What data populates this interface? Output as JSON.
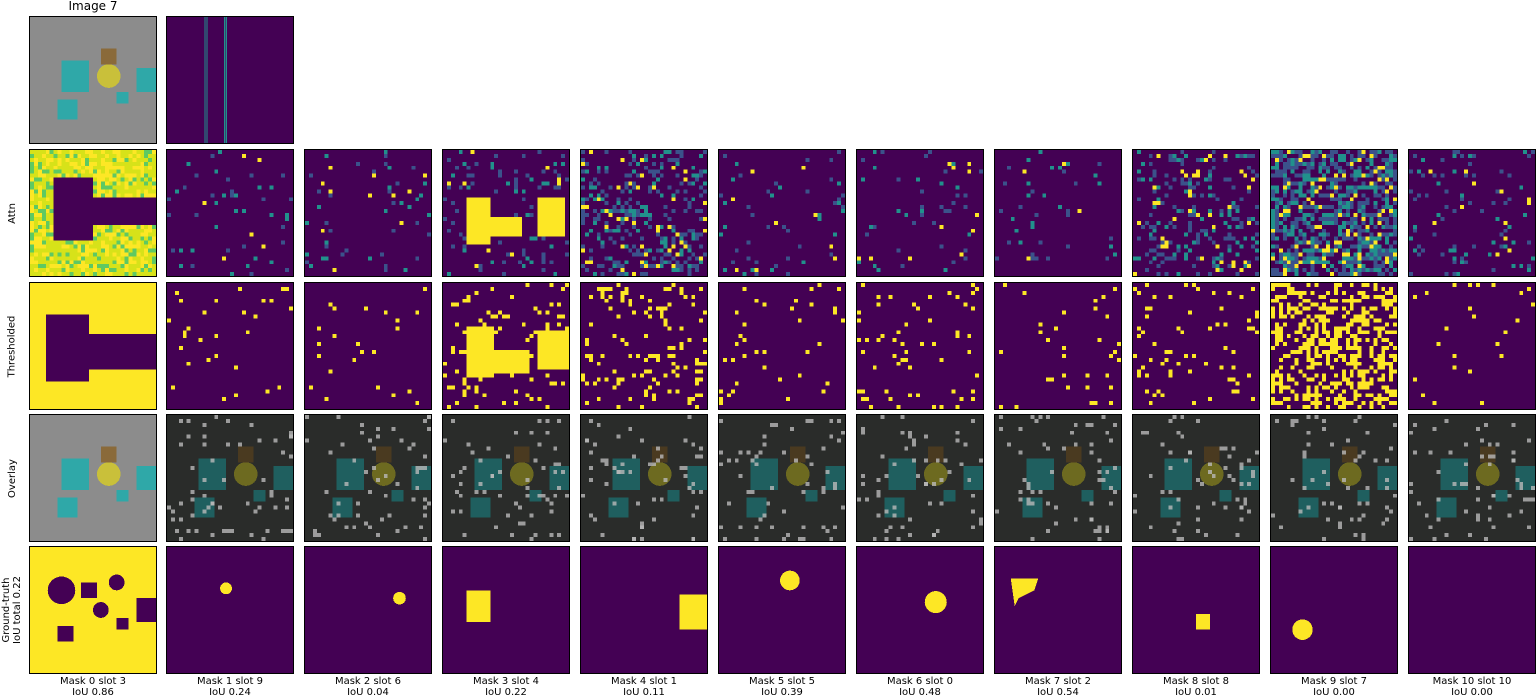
{
  "figure": {
    "title": "Image 7",
    "row_labels": [
      "Attn",
      "Thresholded",
      "Overlay",
      "Ground-truth\nIoU total 0.22"
    ],
    "columns": [
      {
        "mask": "Mask 0 slot 3",
        "iou": "IoU 0.86"
      },
      {
        "mask": "Mask 1 slot 9",
        "iou": "IoU 0.24"
      },
      {
        "mask": "Mask 2 slot 6",
        "iou": "IoU 0.04"
      },
      {
        "mask": "Mask 3 slot 4",
        "iou": "IoU 0.22"
      },
      {
        "mask": "Mask 4 slot 1",
        "iou": "IoU 0.11"
      },
      {
        "mask": "Mask 5 slot 5",
        "iou": "IoU 0.39"
      },
      {
        "mask": "Mask 6 slot 0",
        "iou": "IoU 0.48"
      },
      {
        "mask": "Mask 7 slot 2",
        "iou": "IoU 0.54"
      },
      {
        "mask": "Mask 8 slot 8",
        "iou": "IoU 0.01"
      },
      {
        "mask": "Mask 9 slot 7",
        "iou": "IoU 0.00"
      },
      {
        "mask": "Mask 10 slot 10",
        "iou": "IoU 0.00"
      }
    ]
  },
  "colors": {
    "background_purple": "#440154",
    "mask_yellow": "#fde725",
    "attn_teal": "#21918c",
    "attn_green": "#5ec962",
    "scene_gray": "#8c8c8c",
    "object_cyan": "#2fa8a8",
    "overlay_dark": "#2a2c2a"
  }
}
